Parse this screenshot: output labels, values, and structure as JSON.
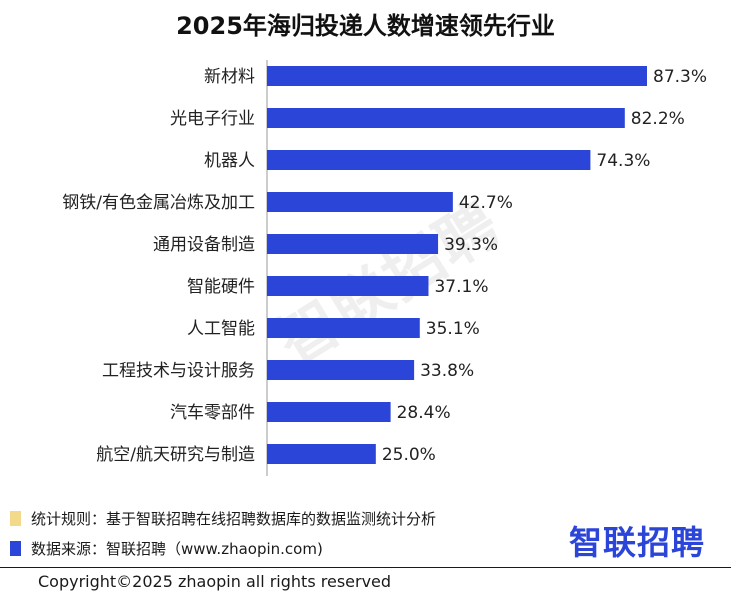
{
  "chart_data": {
    "type": "bar",
    "orientation": "horizontal",
    "title": "2025年海归投递人数增速领先行业",
    "categories": [
      "新材料",
      "光电子行业",
      "机器人",
      "钢铁/有色金属冶炼及加工",
      "通用设备制造",
      "智能硬件",
      "人工智能",
      "工程技术与设计服务",
      "汽车零部件",
      "航空/航天研究与制造"
    ],
    "values": [
      87.3,
      82.2,
      74.3,
      42.7,
      39.3,
      37.1,
      35.1,
      33.8,
      28.4,
      25.0
    ],
    "value_labels": [
      "87.3%",
      "82.2%",
      "74.3%",
      "42.7%",
      "39.3%",
      "37.1%",
      "35.1%",
      "33.8%",
      "28.4%",
      "25.0%"
    ],
    "xlabel": "",
    "ylabel": "",
    "xlim": [
      0,
      87.3
    ],
    "grid": false,
    "bar_color": "#2b45d8"
  },
  "watermark": "智联招聘",
  "legend": [
    {
      "color": "#f3d98a",
      "text": "统计规则：基于智联招聘在线招聘数据库的数据监测统计分析"
    },
    {
      "color": "#2b45d8",
      "text": "数据来源：智联招聘（www.zhaopin.com)"
    }
  ],
  "logo": "智联招聘",
  "copyright": "Copyright©2025 zhaopin all rights reserved"
}
